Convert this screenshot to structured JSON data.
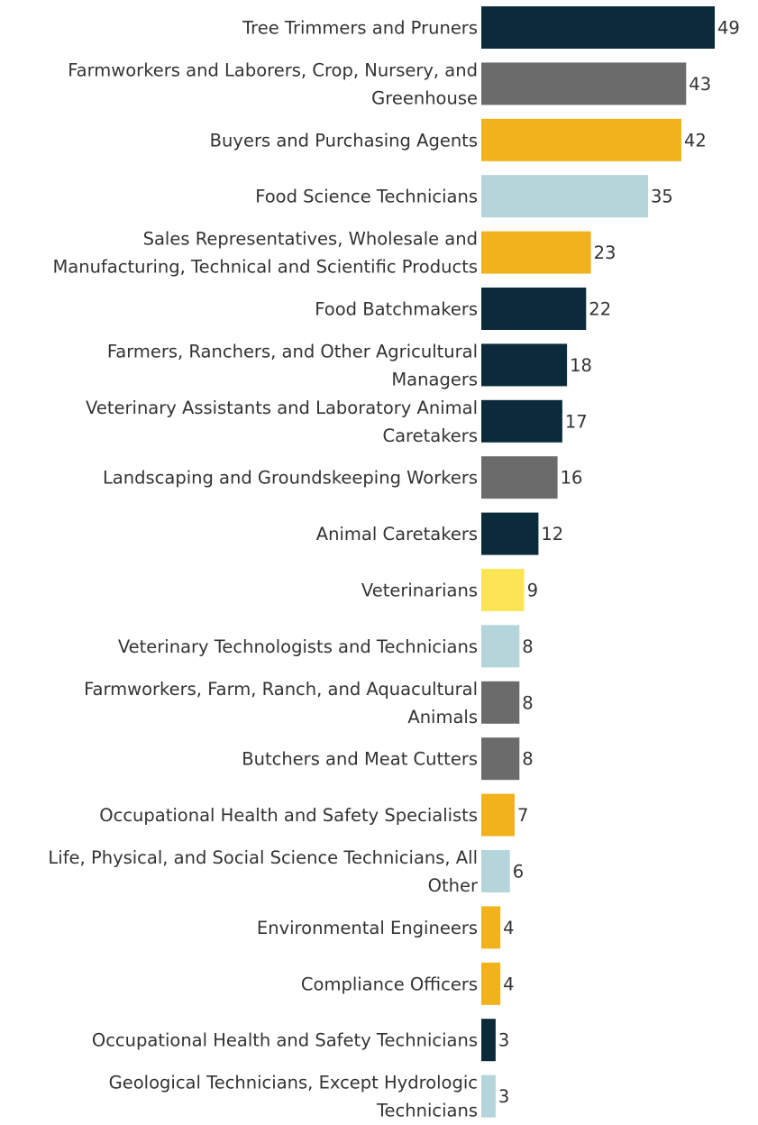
{
  "chart_data": {
    "type": "bar",
    "orientation": "horizontal",
    "title": "",
    "xlabel": "",
    "ylabel": "",
    "xlim": [
      0,
      49
    ],
    "grid": false,
    "legend": "none",
    "categories": [
      "Tree Trimmers and Pruners",
      "Farmworkers and Laborers, Crop, Nursery, and Greenhouse",
      "Buyers and Purchasing Agents",
      "Food Science Technicians",
      "Sales Representatives, Wholesale and Manufacturing, Technical and Scientific Products",
      "Food Batchmakers",
      "Farmers, Ranchers, and Other Agricultural Managers",
      "Veterinary Assistants and Laboratory Animal Caretakers",
      "Landscaping and Groundskeeping Workers",
      "Animal Caretakers",
      "Veterinarians",
      "Veterinary Technologists and Technicians",
      "Farmworkers, Farm, Ranch, and Aquacultural Animals",
      "Butchers and Meat Cutters",
      "Occupational Health and Safety Specialists",
      "Life, Physical, and Social Science Technicians, All Other",
      "Environmental Engineers",
      "Compliance Officers",
      "Occupational Health and Safety Technicians",
      "Geological Technicians, Except Hydrologic Technicians"
    ],
    "label_lines": [
      [
        "Tree Trimmers and Pruners"
      ],
      [
        "Farmworkers and Laborers, Crop, Nursery, and",
        "Greenhouse"
      ],
      [
        "Buyers and Purchasing Agents"
      ],
      [
        "Food Science Technicians"
      ],
      [
        "Sales Representatives, Wholesale and",
        "Manufacturing, Technical and Scientific Products"
      ],
      [
        "Food Batchmakers"
      ],
      [
        "Farmers, Ranchers, and Other Agricultural",
        "Managers"
      ],
      [
        "Veterinary Assistants and Laboratory Animal",
        "Caretakers"
      ],
      [
        "Landscaping and Groundskeeping Workers"
      ],
      [
        "Animal Caretakers"
      ],
      [
        "Veterinarians"
      ],
      [
        "Veterinary Technologists and Technicians"
      ],
      [
        "Farmworkers, Farm, Ranch, and Aquacultural",
        "Animals"
      ],
      [
        "Butchers and Meat Cutters"
      ],
      [
        "Occupational Health and Safety Specialists"
      ],
      [
        "Life, Physical, and Social Science Technicians, All",
        "Other"
      ],
      [
        "Environmental Engineers"
      ],
      [
        "Compliance Officers"
      ],
      [
        "Occupational Health and Safety Technicians"
      ],
      [
        "Geological Technicians, Except Hydrologic",
        "Technicians"
      ]
    ],
    "values": [
      49,
      43,
      42,
      35,
      23,
      22,
      18,
      17,
      16,
      12,
      9,
      8,
      8,
      8,
      7,
      6,
      4,
      4,
      3,
      3
    ],
    "colors": [
      "#0b2b3b",
      "#6b6b6b",
      "#f2b21b",
      "#b4d5da",
      "#f2b21b",
      "#0b2b3b",
      "#0b2b3b",
      "#0b2b3b",
      "#6b6b6b",
      "#0b2b3b",
      "#fde456",
      "#b4d5da",
      "#6b6b6b",
      "#6b6b6b",
      "#f2b21b",
      "#b4d5da",
      "#f2b21b",
      "#f2b21b",
      "#0b2b3b",
      "#b4d5da"
    ]
  }
}
